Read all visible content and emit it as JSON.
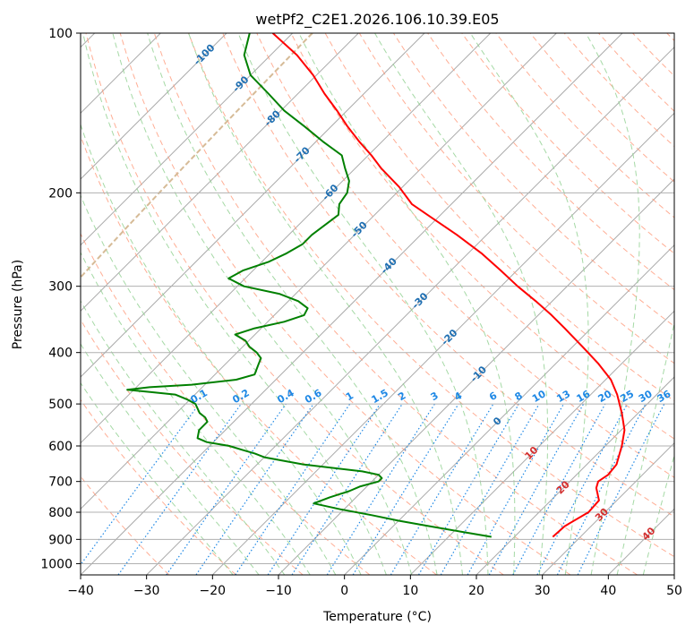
{
  "chart_data": {
    "type": "skew-t",
    "title": "wetPf2_C2E1.2026.106.10.39.E05",
    "xlabel": "Temperature (°C)",
    "ylabel": "Pressure (hPa)",
    "xlim": [
      -40,
      50
    ],
    "ylim": [
      1050,
      100
    ],
    "y_scale": "log",
    "grid": true,
    "x_ticks": [
      -40,
      -30,
      -20,
      -10,
      0,
      10,
      20,
      30,
      40,
      50
    ],
    "x_tick_labels": [
      "−40",
      "−30",
      "−20",
      "−10",
      "0",
      "10",
      "20",
      "30",
      "40",
      "50"
    ],
    "y_ticks": [
      100,
      200,
      300,
      400,
      500,
      600,
      700,
      800,
      900,
      1000
    ],
    "y_tick_labels": [
      "100",
      "200",
      "300",
      "400",
      "500",
      "600",
      "700",
      "800",
      "900",
      "1000"
    ],
    "colors": {
      "temperature": "#ff0000",
      "dewpoint": "#008000",
      "isotherm_label": "#1f6fb2",
      "mixing_ratio": "#1e88e5",
      "dry_adiabat": "#ff9a7a",
      "moist_adiabat": "#8fcf8f",
      "moist_adiabat_label": "#d32f2f",
      "isotherm": "#aaaaaa",
      "grid": "#b0b0b0",
      "extra_curve": "#d2b48c"
    },
    "series": [
      {
        "role": "temperature",
        "pressure": [
          890,
          850,
          800,
          760,
          720,
          700,
          680,
          650,
          600,
          560,
          520,
          480,
          450,
          420,
          390,
          360,
          340,
          320,
          300,
          280,
          260,
          240,
          220,
          210,
          195,
          180,
          170,
          160,
          150,
          140,
          130,
          120,
          110,
          100
        ],
        "temperature": [
          25.8,
          26.0,
          27.5,
          27.3,
          25.0,
          24.3,
          24.8,
          24.5,
          22.5,
          20.5,
          17.5,
          14.0,
          10.8,
          6.5,
          1.5,
          -4.0,
          -8.0,
          -12.5,
          -17.5,
          -22.5,
          -28.0,
          -34.5,
          -42.0,
          -46.0,
          -50.5,
          -56.0,
          -59.5,
          -63.5,
          -67.5,
          -71.5,
          -76.0,
          -80.5,
          -86.0,
          -93.0
        ]
      },
      {
        "role": "dewpoint",
        "pressure": [
          890,
          870,
          850,
          830,
          810,
          790,
          770,
          750,
          730,
          715,
          700,
          690,
          680,
          670,
          650,
          630,
          620,
          610,
          600,
          590,
          580,
          560,
          540,
          530,
          520,
          510,
          500,
          490,
          480,
          475,
          470,
          465,
          460,
          450,
          440,
          430,
          420,
          410,
          400,
          390,
          380,
          370,
          360,
          350,
          340,
          330,
          320,
          310,
          300,
          290,
          280,
          270,
          260,
          250,
          240,
          230,
          220,
          210,
          200,
          190,
          180,
          170,
          160,
          150,
          140,
          130,
          120,
          110,
          100
        ],
        "temperature": [
          16.5,
          11.0,
          5.5,
          0.0,
          -5.0,
          -10.5,
          -15.5,
          -14.0,
          -12.0,
          -11.0,
          -9.0,
          -9.0,
          -10.0,
          -13.0,
          -23.0,
          -30.0,
          -32.0,
          -34.5,
          -37.0,
          -41.0,
          -43.0,
          -44.0,
          -44.0,
          -45.0,
          -46.5,
          -47.5,
          -48.5,
          -50.5,
          -53.0,
          -57.0,
          -61.0,
          -58.0,
          -52.0,
          -46.0,
          -44.0,
          -44.5,
          -45.0,
          -45.5,
          -47.0,
          -49.0,
          -50.5,
          -53.0,
          -51.0,
          -47.5,
          -45.5,
          -46.0,
          -48.5,
          -52.5,
          -59.0,
          -62.5,
          -61.5,
          -59.0,
          -57.5,
          -56.5,
          -56.5,
          -56.0,
          -55.5,
          -57.0,
          -57.5,
          -59.0,
          -61.5,
          -64.0,
          -69.0,
          -74.0,
          -79.5,
          -84.5,
          -90.0,
          -94.0,
          -96.5
        ]
      }
    ],
    "isotherm_labels": [
      "-100",
      "-90",
      "-80",
      "-70",
      "-60",
      "-50",
      "-40",
      "-30",
      "-20",
      "-10",
      "0"
    ],
    "isotherm_label_values": [
      -100,
      -90,
      -80,
      -70,
      -60,
      -50,
      -40,
      -30,
      -20,
      -10,
      0
    ],
    "mixing_ratio_labels": [
      "0.1",
      "0.2",
      "0.4",
      "0.6",
      "1",
      "1.5",
      "2",
      "3",
      "4",
      "6",
      "8",
      "10",
      "13",
      "16",
      "20",
      "25",
      "30",
      "36"
    ],
    "mixing_ratio_values": [
      0.1,
      0.2,
      0.4,
      0.6,
      1,
      1.5,
      2,
      3,
      4,
      6,
      8,
      10,
      13,
      16,
      20,
      25,
      30,
      36
    ],
    "moist_adiabat_labels": [
      "10",
      "20",
      "30",
      "40"
    ],
    "moist_adiabat_label_values": [
      10,
      20,
      30,
      40
    ]
  }
}
